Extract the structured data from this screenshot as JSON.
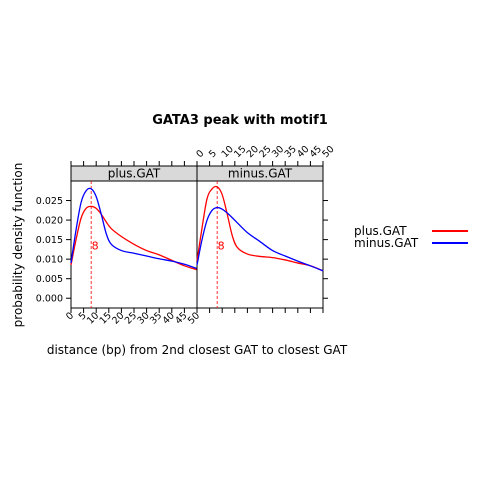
{
  "chart_data": {
    "type": "line",
    "title": "GATA3 peak with motif1",
    "xlabel": "distance (bp) from 2nd closest GAT to closest GAT",
    "ylabel": "probability density function",
    "xlim": [
      0,
      50
    ],
    "ylim": [
      -0.0025,
      0.03
    ],
    "x_ticks": [
      "0",
      "5",
      "10",
      "15",
      "20",
      "25",
      "30",
      "35",
      "40",
      "45",
      "50"
    ],
    "y_ticks": [
      "0.000",
      "0.005",
      "0.010",
      "0.015",
      "0.020",
      "0.025"
    ],
    "grid": false,
    "legend_position": "right",
    "colors": {
      "plus": "#ff0000",
      "minus": "#0000ff",
      "annotation": "#ff0000"
    },
    "legend": [
      {
        "name": "plus.GAT",
        "color": "#ff0000"
      },
      {
        "name": "minus.GAT",
        "color": "#0000ff"
      }
    ],
    "panels": [
      {
        "strip": "plus.GAT",
        "annotation": {
          "x": 8,
          "label": "8"
        },
        "series": [
          {
            "name": "plus.GAT",
            "color": "#ff0000",
            "x": [
              0,
              2,
              4,
              6,
              8,
              10,
              12,
              14,
              16,
              20,
              25,
              30,
              35,
              40,
              45,
              50
            ],
            "y": [
              0.0085,
              0.015,
              0.0205,
              0.023,
              0.0235,
              0.023,
              0.0215,
              0.0195,
              0.0178,
              0.0158,
              0.0138,
              0.0122,
              0.0111,
              0.0097,
              0.0083,
              0.0073
            ]
          },
          {
            "name": "minus.GAT",
            "color": "#0000ff",
            "x": [
              0,
              2,
              4,
              6,
              8,
              10,
              12,
              14,
              16,
              20,
              25,
              30,
              35,
              40,
              45,
              50
            ],
            "y": [
              0.009,
              0.0175,
              0.0245,
              0.0275,
              0.028,
              0.026,
              0.0215,
              0.0165,
              0.0138,
              0.0122,
              0.0115,
              0.0108,
              0.0101,
              0.0095,
              0.0087,
              0.0076
            ]
          }
        ]
      },
      {
        "strip": "minus.GAT",
        "annotation": {
          "x": 8,
          "label": "8"
        },
        "series": [
          {
            "name": "plus.GAT",
            "color": "#ff0000",
            "x": [
              0,
              2,
              4,
              6,
              8,
              10,
              12,
              14,
              16,
              20,
              25,
              30,
              35,
              40,
              45,
              50
            ],
            "y": [
              0.0095,
              0.018,
              0.0255,
              0.028,
              0.0285,
              0.0265,
              0.0215,
              0.016,
              0.013,
              0.0113,
              0.0107,
              0.0104,
              0.0098,
              0.009,
              0.0083,
              0.007
            ]
          },
          {
            "name": "minus.GAT",
            "color": "#0000ff",
            "x": [
              0,
              2,
              4,
              6,
              8,
              10,
              12,
              14,
              16,
              20,
              25,
              30,
              35,
              40,
              45,
              50
            ],
            "y": [
              0.0085,
              0.015,
              0.02,
              0.0225,
              0.0232,
              0.0228,
              0.0218,
              0.0206,
              0.0193,
              0.0168,
              0.0145,
              0.0122,
              0.0108,
              0.0095,
              0.0083,
              0.007
            ]
          }
        ]
      }
    ]
  }
}
